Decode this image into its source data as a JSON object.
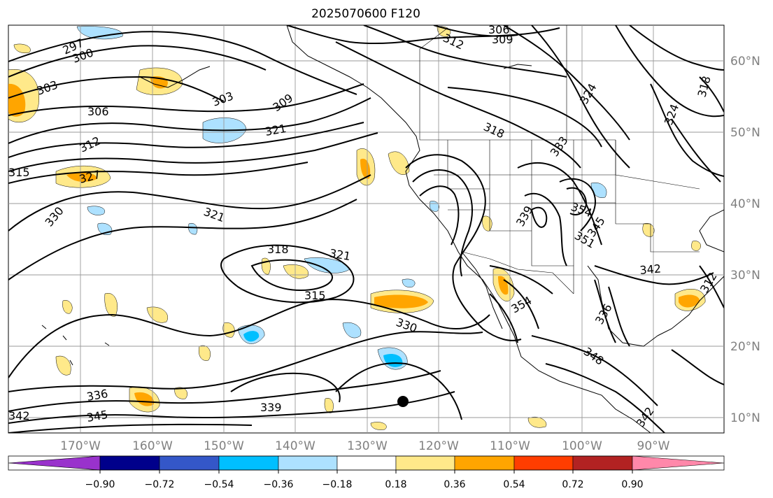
{
  "title": "2025070600 F120",
  "lon_labels": [
    "170°W",
    "160°W",
    "150°W",
    "140°W",
    "130°W",
    "120°W",
    "110°W",
    "100°W",
    "90°W"
  ],
  "lat_labels": [
    "60°N",
    "50°N",
    "40°N",
    "30°N",
    "20°N",
    "10°N"
  ],
  "colorbar": {
    "ticks": [
      "−0.90",
      "−0.72",
      "−0.54",
      "−0.36",
      "−0.18",
      "0.18",
      "0.36",
      "0.54",
      "0.72",
      "0.90"
    ],
    "colors": [
      "#9932CC",
      "#00008B",
      "#3457C8",
      "#00BFFF",
      "#ADE1FF",
      "#FFFFFF",
      "#FFE98A",
      "#FFA500",
      "#FF3D00",
      "#B22222",
      "#FF88AA"
    ]
  },
  "contour_labels": [
    "297",
    "300",
    "303",
    "303",
    "306",
    "309",
    "309",
    "312",
    "312",
    "315",
    "315",
    "318",
    "318",
    "318",
    "321",
    "321",
    "321",
    "324",
    "324",
    "327",
    "330",
    "330",
    "333",
    "336",
    "336",
    "339",
    "339",
    "342",
    "342",
    "342",
    "345",
    "345",
    "348",
    "351",
    "354",
    "354",
    "306",
    "312"
  ],
  "marker": "black-dot"
}
